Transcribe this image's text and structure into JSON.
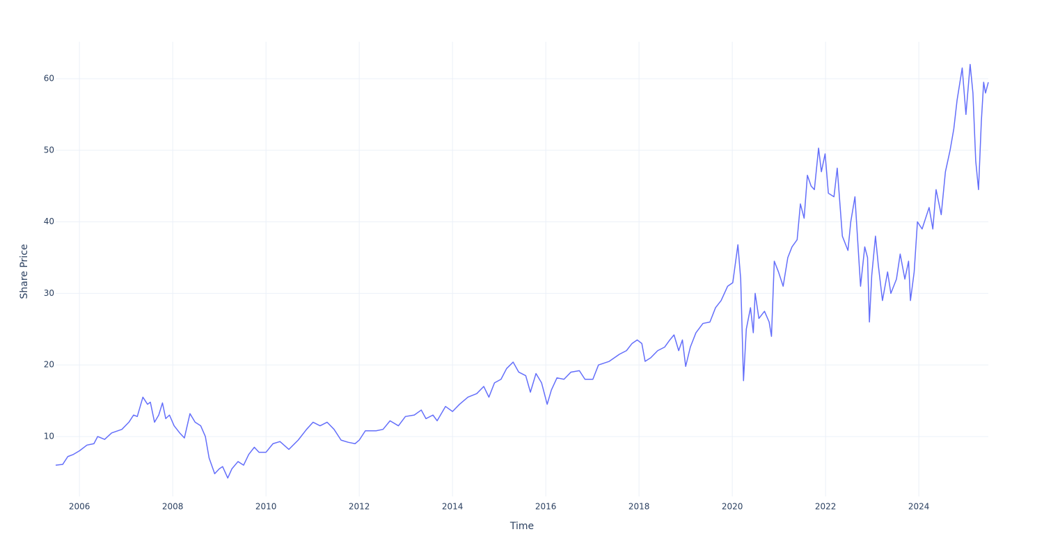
{
  "chart_data": {
    "type": "line",
    "x_label": "Time",
    "y_label": "Share Price",
    "color": "#636efa",
    "grid": true,
    "xlim": [
      2005.49,
      2025.49
    ],
    "xticks": [
      2006,
      2008,
      2010,
      2012,
      2014,
      2016,
      2018,
      2020,
      2022,
      2024
    ],
    "ylim": [
      1.63,
      65.16
    ],
    "yticks": [
      10,
      20,
      30,
      40,
      50,
      60
    ],
    "x": [
      2005.49,
      2005.64,
      2005.75,
      2005.87,
      2006.0,
      2006.16,
      2006.31,
      2006.39,
      2006.54,
      2006.69,
      2006.91,
      2007.06,
      2007.16,
      2007.24,
      2007.36,
      2007.46,
      2007.52,
      2007.61,
      2007.7,
      2007.78,
      2007.85,
      2007.93,
      2008.03,
      2008.15,
      2008.25,
      2008.37,
      2008.48,
      2008.6,
      2008.7,
      2008.78,
      2008.9,
      2009.0,
      2009.07,
      2009.18,
      2009.27,
      2009.4,
      2009.52,
      2009.63,
      2009.75,
      2009.85,
      2010.0,
      2010.15,
      2010.3,
      2010.49,
      2010.69,
      2010.87,
      2011.01,
      2011.16,
      2011.31,
      2011.46,
      2011.61,
      2011.76,
      2011.91,
      2012.0,
      2012.13,
      2012.36,
      2012.51,
      2012.66,
      2012.84,
      2012.99,
      2013.18,
      2013.33,
      2013.43,
      2013.58,
      2013.67,
      2013.85,
      2014.0,
      2014.15,
      2014.33,
      2014.52,
      2014.67,
      2014.78,
      2014.9,
      2015.04,
      2015.16,
      2015.3,
      2015.42,
      2015.57,
      2015.67,
      2015.79,
      2015.91,
      2016.03,
      2016.12,
      2016.24,
      2016.39,
      2016.54,
      2016.72,
      2016.84,
      2017.01,
      2017.13,
      2017.36,
      2017.58,
      2017.73,
      2017.85,
      2017.96,
      2018.06,
      2018.13,
      2018.25,
      2018.4,
      2018.55,
      2018.66,
      2018.75,
      2018.85,
      2018.93,
      2019.0,
      2019.1,
      2019.22,
      2019.37,
      2019.52,
      2019.64,
      2019.76,
      2019.9,
      2020.01,
      2020.12,
      2020.18,
      2020.24,
      2020.3,
      2020.39,
      2020.45,
      2020.49,
      2020.57,
      2020.69,
      2020.79,
      2020.84,
      2020.9,
      2020.99,
      2021.09,
      2021.19,
      2021.28,
      2021.39,
      2021.46,
      2021.54,
      2021.61,
      2021.69,
      2021.76,
      2021.85,
      2021.91,
      2021.99,
      2022.06,
      2022.18,
      2022.25,
      2022.36,
      2022.48,
      2022.54,
      2022.63,
      2022.75,
      2022.84,
      2022.9,
      2022.94,
      2022.99,
      2023.07,
      2023.13,
      2023.22,
      2023.33,
      2023.4,
      2023.52,
      2023.6,
      2023.7,
      2023.78,
      2023.82,
      2023.9,
      2023.97,
      2024.07,
      2024.22,
      2024.3,
      2024.37,
      2024.48,
      2024.57,
      2024.67,
      2024.75,
      2024.82,
      2024.93,
      2025.01,
      2025.1,
      2025.16,
      2025.22,
      2025.28,
      2025.34,
      2025.39,
      2025.43,
      2025.49
    ],
    "values": [
      6.0,
      6.1,
      7.2,
      7.5,
      8.0,
      8.8,
      9.0,
      10.0,
      9.6,
      10.5,
      11.0,
      12.0,
      13.0,
      12.8,
      15.5,
      14.5,
      14.8,
      12.0,
      13.0,
      14.7,
      12.5,
      13.0,
      11.5,
      10.5,
      9.8,
      13.2,
      12.0,
      11.5,
      10.0,
      7.0,
      4.8,
      5.5,
      5.8,
      4.2,
      5.5,
      6.5,
      6.0,
      7.5,
      8.5,
      7.8,
      7.8,
      9.0,
      9.3,
      8.2,
      9.5,
      11.0,
      12.0,
      11.5,
      12.0,
      11.0,
      9.5,
      9.2,
      9.0,
      9.5,
      10.8,
      10.8,
      11.0,
      12.2,
      11.5,
      12.8,
      13.0,
      13.7,
      12.5,
      13.0,
      12.2,
      14.2,
      13.5,
      14.5,
      15.5,
      16.0,
      17.0,
      15.5,
      17.5,
      18.0,
      19.5,
      20.4,
      19.0,
      18.5,
      16.2,
      18.8,
      17.5,
      14.5,
      16.5,
      18.2,
      18.0,
      19.0,
      19.2,
      18.0,
      18.0,
      20.0,
      20.5,
      21.5,
      22.0,
      23.0,
      23.5,
      23.0,
      20.5,
      21.0,
      22.0,
      22.5,
      23.5,
      24.2,
      22.0,
      23.5,
      19.8,
      22.5,
      24.5,
      25.8,
      26.0,
      28.0,
      29.0,
      31.0,
      31.5,
      36.8,
      32.0,
      17.8,
      25.0,
      28.0,
      24.5,
      30.0,
      26.5,
      27.5,
      26.0,
      24.0,
      34.5,
      33.0,
      31.0,
      35.0,
      36.5,
      37.5,
      42.5,
      40.5,
      46.5,
      45.0,
      44.5,
      50.3,
      47.0,
      49.5,
      44.0,
      43.5,
      47.5,
      38.0,
      36.0,
      40.0,
      43.5,
      31.0,
      36.5,
      35.0,
      26.0,
      32.5,
      38.0,
      34.0,
      29.0,
      33.0,
      30.0,
      32.0,
      35.5,
      32.0,
      34.5,
      29.0,
      33.0,
      40.0,
      39.0,
      42.0,
      39.0,
      44.5,
      41.0,
      47.0,
      50.0,
      53.0,
      57.0,
      61.5,
      55.0,
      62.0,
      58.0,
      48.5,
      44.5,
      54.0,
      59.5,
      58.0,
      59.5
    ]
  }
}
